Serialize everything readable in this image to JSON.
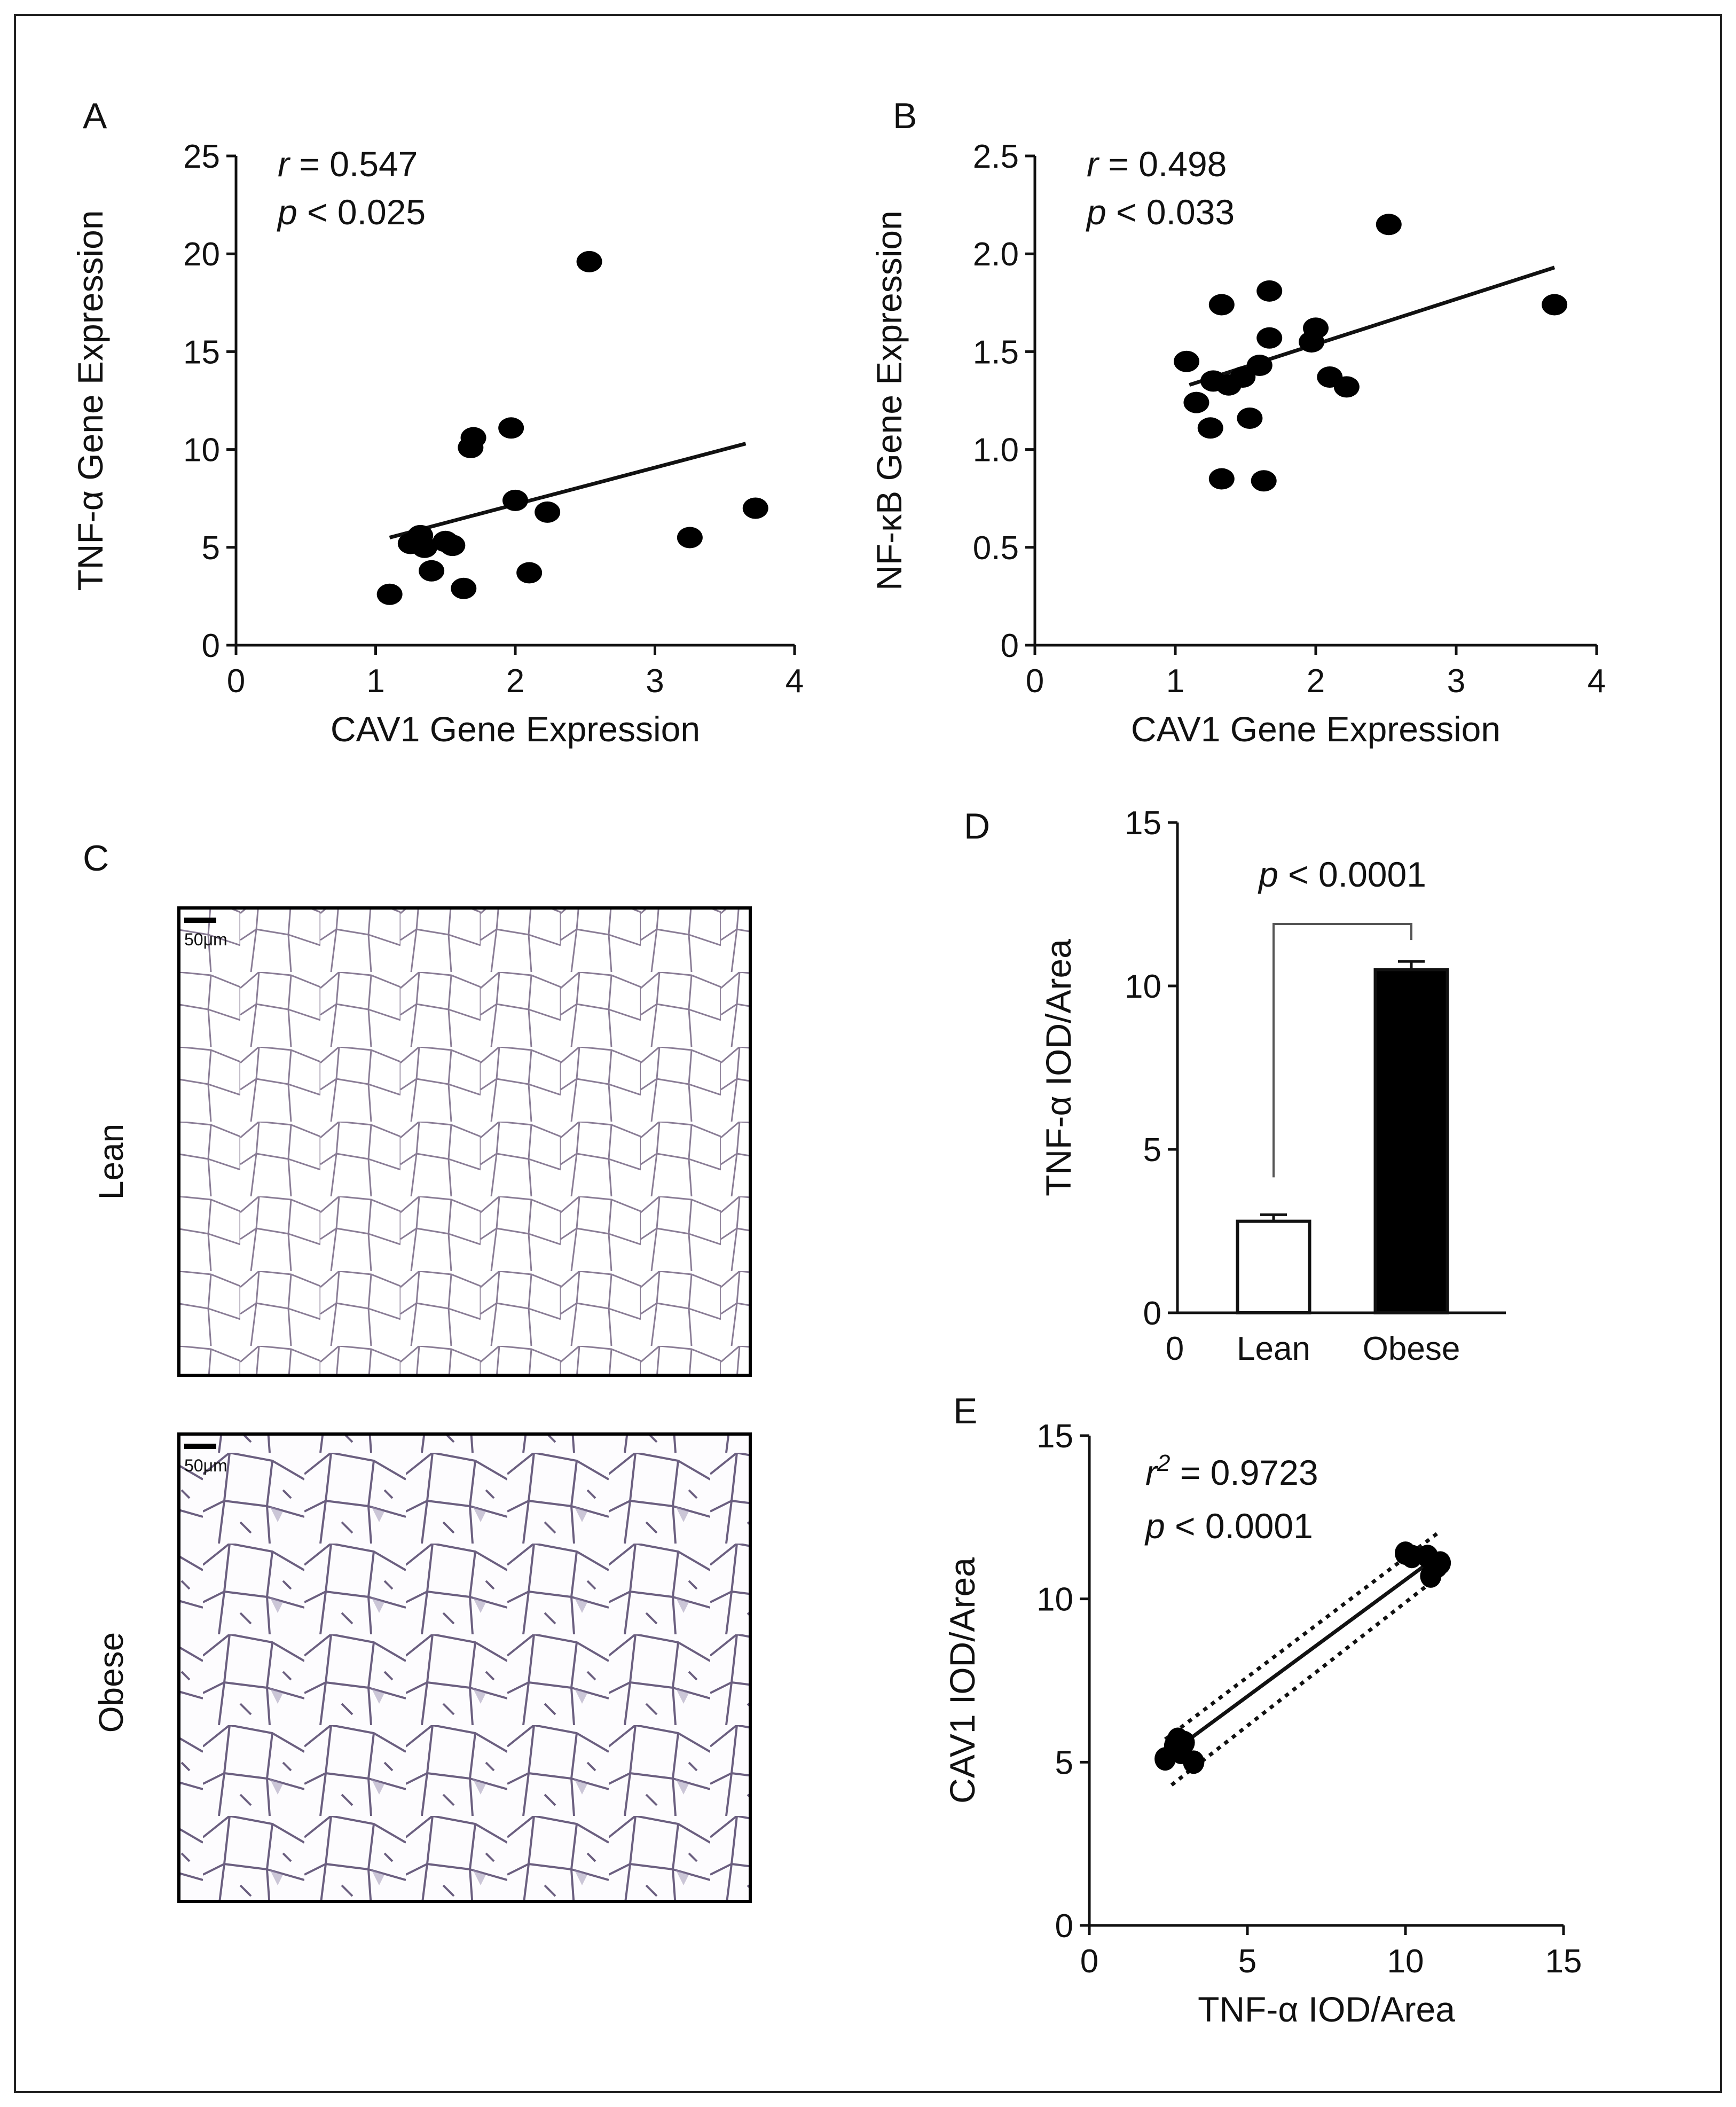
{
  "figure": {
    "panel_labels": {
      "A": "A",
      "B": "B",
      "C": "C",
      "D": "D",
      "E": "E"
    }
  },
  "chart_data": [
    {
      "panel": "A",
      "type": "scatter",
      "xlabel": "CAV1 Gene Expression",
      "ylabel": "TNF-α Gene Expression",
      "xlim": [
        0,
        4
      ],
      "ylim": [
        0,
        25
      ],
      "xticks": [
        0,
        1,
        2,
        3,
        4
      ],
      "yticks": [
        0,
        5,
        10,
        15,
        20,
        25
      ],
      "annotation": {
        "r_symbol": "r",
        "r_value": " = 0.547",
        "p_symbol": "p",
        "p_value": " < 0.025"
      },
      "points": [
        [
          1.1,
          2.6
        ],
        [
          1.25,
          5.2
        ],
        [
          1.32,
          5.6
        ],
        [
          1.35,
          5.0
        ],
        [
          1.4,
          3.8
        ],
        [
          1.5,
          5.3
        ],
        [
          1.55,
          5.1
        ],
        [
          1.63,
          2.9
        ],
        [
          1.68,
          10.1
        ],
        [
          1.7,
          10.6
        ],
        [
          1.97,
          11.1
        ],
        [
          2.0,
          7.4
        ],
        [
          2.1,
          3.7
        ],
        [
          2.23,
          6.8
        ],
        [
          2.53,
          19.6
        ],
        [
          3.25,
          5.5
        ],
        [
          3.72,
          7.0
        ]
      ],
      "fit": [
        [
          1.1,
          5.5
        ],
        [
          3.65,
          10.3
        ]
      ]
    },
    {
      "panel": "B",
      "type": "scatter",
      "xlabel": "CAV1 Gene Expression",
      "ylabel": "NF-κB Gene Expression",
      "xlim": [
        0,
        4
      ],
      "ylim": [
        0,
        2.5
      ],
      "xticks": [
        0,
        1,
        2,
        3,
        4
      ],
      "yticks": [
        0,
        0.5,
        1.0,
        1.5,
        2.0,
        2.5
      ],
      "ytick_labels": [
        "0",
        "0.5",
        "1.0",
        "1.5",
        "2.0",
        "2.5"
      ],
      "annotation": {
        "r_symbol": "r",
        "r_value": " = 0.498",
        "p_symbol": "p",
        "p_value": " < 0.033"
      },
      "points": [
        [
          1.08,
          1.45
        ],
        [
          1.15,
          1.24
        ],
        [
          1.25,
          1.11
        ],
        [
          1.27,
          1.35
        ],
        [
          1.33,
          0.85
        ],
        [
          1.33,
          1.74
        ],
        [
          1.38,
          1.33
        ],
        [
          1.48,
          1.37
        ],
        [
          1.53,
          1.16
        ],
        [
          1.6,
          1.43
        ],
        [
          1.63,
          0.84
        ],
        [
          1.67,
          1.57
        ],
        [
          1.67,
          1.81
        ],
        [
          1.97,
          1.55
        ],
        [
          2.0,
          1.62
        ],
        [
          2.1,
          1.37
        ],
        [
          2.22,
          1.32
        ],
        [
          2.52,
          2.15
        ],
        [
          3.7,
          1.74
        ]
      ],
      "fit": [
        [
          1.1,
          1.33
        ],
        [
          3.7,
          1.93
        ]
      ]
    },
    {
      "panel": "D",
      "type": "bar",
      "ylabel": "TNF-α IOD/Area",
      "categories": [
        "Lean",
        "Obese"
      ],
      "values": [
        2.8,
        10.5
      ],
      "errors": [
        0.2,
        0.25
      ],
      "fills": [
        "#ffffff",
        "#000000"
      ],
      "ylim": [
        0,
        15
      ],
      "yticks": [
        0,
        5,
        10,
        15
      ],
      "x_origin_label": "0",
      "significance": {
        "p_symbol": "p",
        "p_value": " < 0.0001"
      }
    },
    {
      "panel": "E",
      "type": "scatter",
      "xlabel": "TNF-α IOD/Area",
      "ylabel": "CAV1 IOD/Area",
      "xlim": [
        0,
        15
      ],
      "ylim": [
        0,
        15
      ],
      "xticks": [
        0,
        5,
        10,
        15
      ],
      "yticks": [
        0,
        5,
        10,
        15
      ],
      "annotation": {
        "r_symbol": "r",
        "r_sup": "2",
        "r_value": " = 0.9723",
        "p_symbol": "p",
        "p_value": " < 0.0001"
      },
      "points": [
        [
          2.4,
          5.1
        ],
        [
          2.7,
          5.5
        ],
        [
          2.8,
          5.7
        ],
        [
          2.9,
          5.3
        ],
        [
          3.0,
          5.6
        ],
        [
          3.3,
          5.0
        ],
        [
          10.0,
          11.4
        ],
        [
          10.2,
          11.3
        ],
        [
          10.7,
          11.3
        ],
        [
          10.8,
          10.7
        ],
        [
          11.0,
          11.0
        ],
        [
          11.1,
          11.1
        ]
      ],
      "fit": [
        [
          2.6,
          5.3
        ],
        [
          11.0,
          11.3
        ]
      ],
      "ci_upper": [
        [
          2.4,
          5.7
        ],
        [
          11.0,
          12.0
        ]
      ],
      "ci_lower": [
        [
          2.6,
          4.3
        ],
        [
          11.2,
          10.8
        ]
      ]
    }
  ],
  "micrographs": {
    "lean": {
      "row_label": "Lean",
      "scale_bar": "50μm"
    },
    "obese": {
      "row_label": "Obese",
      "scale_bar": "50μm"
    }
  }
}
